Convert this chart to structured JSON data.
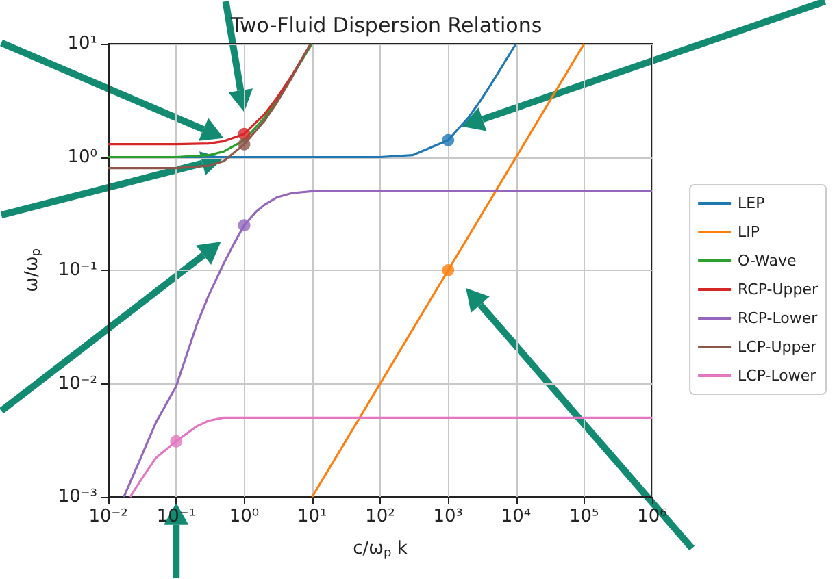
{
  "chart_data": {
    "type": "line",
    "title": "Two-Fluid Dispersion Relations",
    "xlabel": "c/ω$_{p}$ k",
    "ylabel": "ω/ω$_{p}$",
    "log": "xy",
    "grid": true,
    "legend": "right",
    "xlim": [
      0.01,
      1000000
    ],
    "ylim": [
      0.001,
      10
    ],
    "xticks": [
      {
        "value": 0.01,
        "label": "10⁻²"
      },
      {
        "value": 0.1,
        "label": "10⁻¹"
      },
      {
        "value": 1,
        "label": "10⁰"
      },
      {
        "value": 10,
        "label": "10¹"
      },
      {
        "value": 100,
        "label": "10²"
      },
      {
        "value": 1000,
        "label": "10³"
      },
      {
        "value": 10000,
        "label": "10⁴"
      },
      {
        "value": 100000,
        "label": "10⁵"
      },
      {
        "value": 1000000,
        "label": "10⁶"
      }
    ],
    "yticks": [
      {
        "value": 0.001,
        "label": "10⁻³"
      },
      {
        "value": 0.01,
        "label": "10⁻²"
      },
      {
        "value": 0.1,
        "label": "10⁻¹"
      },
      {
        "value": 1,
        "label": "10⁰"
      },
      {
        "value": 10,
        "label": "10¹"
      }
    ],
    "series": [
      {
        "name": "LEP",
        "color": "#1f77b4",
        "x": [
          0.01,
          1,
          100,
          300,
          1000,
          2000,
          3000,
          5000,
          9950
        ],
        "values": [
          1,
          1,
          1,
          1.04,
          1.41,
          2.24,
          3.16,
          5.1,
          10
        ]
      },
      {
        "name": "LIP",
        "color": "#ff7f0e",
        "x": [
          10,
          1000,
          100000
        ],
        "values": [
          0.001,
          0.1,
          10
        ]
      },
      {
        "name": "O-Wave",
        "color": "#2ca02c",
        "x": [
          0.01,
          0.1,
          0.3,
          0.5,
          1,
          2,
          3,
          5,
          9.95
        ],
        "values": [
          1,
          1,
          1.04,
          1.12,
          1.41,
          2.24,
          3.16,
          5.1,
          10
        ]
      },
      {
        "name": "RCP-Upper",
        "color": "#d62728",
        "x": [
          0.01,
          0.1,
          0.3,
          0.5,
          1,
          2,
          3,
          5,
          9.5
        ],
        "values": [
          1.3,
          1.3,
          1.32,
          1.38,
          1.6,
          2.4,
          3.3,
          5.2,
          10
        ]
      },
      {
        "name": "RCP-Lower",
        "color": "#9467bd",
        "x": [
          0.017,
          0.03,
          0.05,
          0.1,
          0.2,
          0.3,
          0.5,
          0.7,
          1,
          1.5,
          2,
          3,
          5,
          10,
          1000000
        ],
        "values": [
          0.001,
          0.0022,
          0.0045,
          0.0095,
          0.033,
          0.06,
          0.115,
          0.17,
          0.25,
          0.33,
          0.38,
          0.44,
          0.48,
          0.5,
          0.5
        ]
      },
      {
        "name": "LCP-Upper",
        "color": "#8c564b",
        "x": [
          0.01,
          0.1,
          0.3,
          0.5,
          1,
          2,
          3,
          5,
          9.5
        ],
        "values": [
          0.8,
          0.8,
          0.84,
          0.92,
          1.3,
          2.1,
          3,
          5,
          10
        ]
      },
      {
        "name": "LCP-Lower",
        "color": "#e377c2",
        "x": [
          0.021,
          0.03,
          0.05,
          0.1,
          0.2,
          0.3,
          0.5,
          1,
          1000000
        ],
        "values": [
          0.001,
          0.0014,
          0.0022,
          0.0031,
          0.0042,
          0.0047,
          0.005,
          0.005,
          0.005
        ]
      },
      {
        "type": "scatter",
        "color": "#1f77b4",
        "x": [
          1000
        ],
        "values": [
          1.41
        ]
      },
      {
        "type": "scatter",
        "color": "#ff7f0e",
        "x": [
          1000
        ],
        "values": [
          0.1
        ]
      },
      {
        "type": "scatter",
        "color": "#d62728",
        "x": [
          1
        ],
        "values": [
          1.6
        ]
      },
      {
        "type": "scatter",
        "color": "#9467bd",
        "x": [
          1
        ],
        "values": [
          0.25
        ]
      },
      {
        "type": "scatter",
        "color": "#8c564b",
        "x": [
          1
        ],
        "values": [
          1.3
        ]
      },
      {
        "type": "scatter",
        "color": "#e377c2",
        "x": [
          0.1
        ],
        "values": [
          0.0031
        ]
      }
    ]
  }
}
